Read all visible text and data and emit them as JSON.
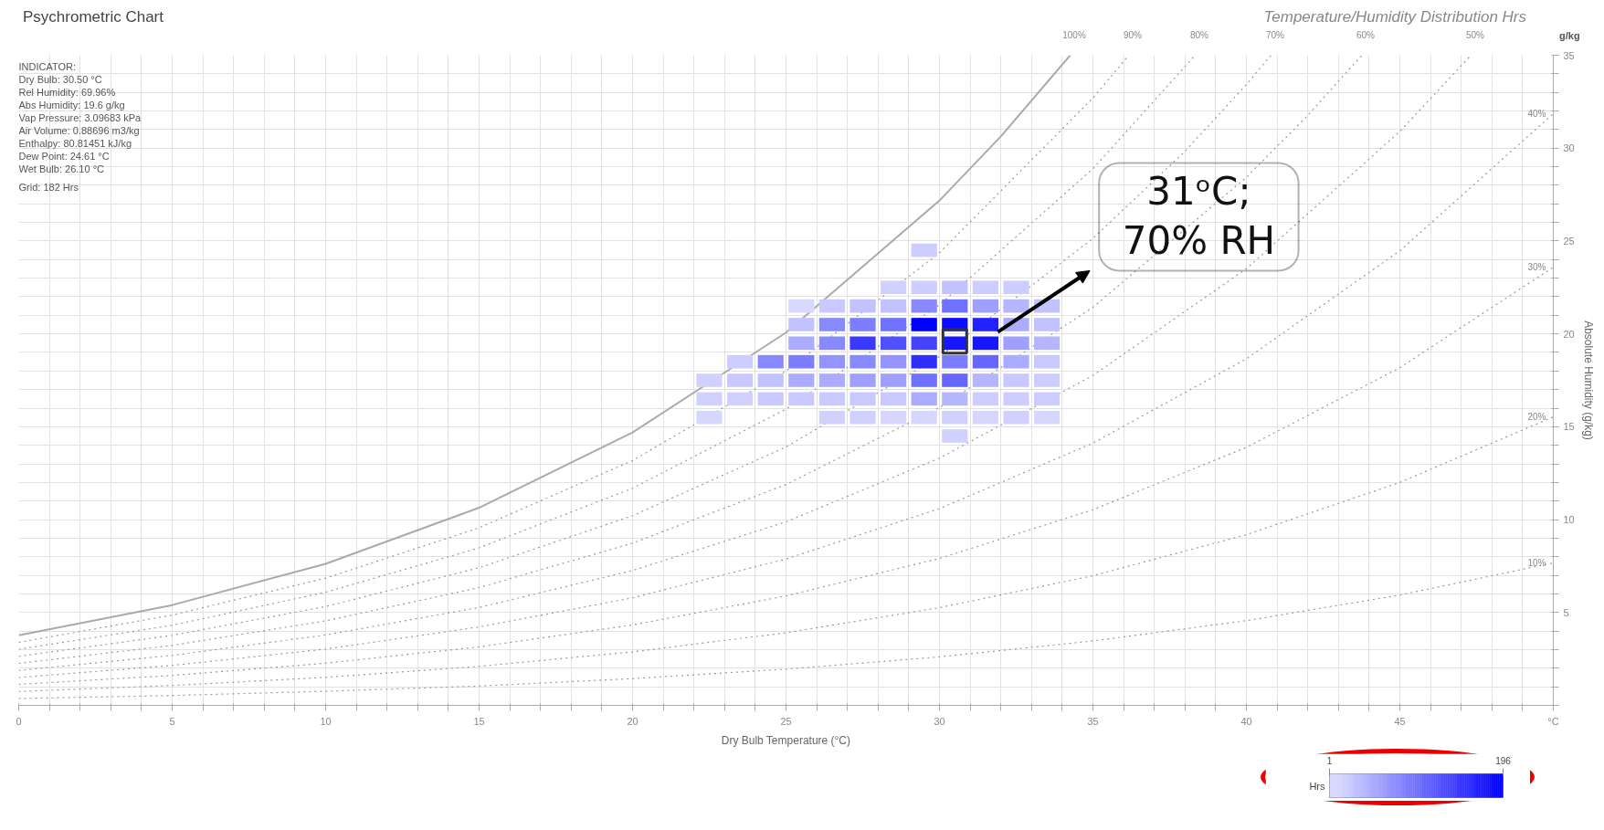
{
  "chart_data": {
    "type": "line",
    "title": "Psychrometric Chart",
    "subtitle": "Temperature/Humidity Distribution Hrs",
    "xlabel": "Dry Bulb Temperature (°C)",
    "ylabel": "Absolute Humidity (g/kg)",
    "clabel": "Hrs",
    "clim": [
      1,
      196
    ],
    "cticks": [
      1,
      196
    ],
    "annotations": [
      "INDICATOR:",
      "Dry Bulb: 30.50 °C",
      "Rel Humidity: 69.96%",
      "Abs Humidity: 19.6 g/kg",
      "Vap Pressure: 3.09683 kPa",
      "Air Volume: 0.88696 m3/kg",
      "Enthalpy: 80.81451 kJ/kg",
      "Dew Point: 24.61 °C",
      "Wet Bulb: 26.10 °C",
      "Grid: 182 Hrs",
      "g/kg",
      "°C",
      {
        "text": "31ᵒC; 70% RH",
        "x": 31.9,
        "y": 20.1
      }
    ],
    "xlim": [
      0,
      50
    ],
    "ylim": [
      0,
      35
    ],
    "grid": true,
    "xticks": [
      0,
      {
        "value": 1,
        "label": null
      },
      {
        "value": 2,
        "label": null
      },
      {
        "value": 3,
        "label": null
      },
      {
        "value": 4,
        "label": null
      },
      5,
      {
        "value": 6,
        "label": null
      },
      {
        "value": 7,
        "label": null
      },
      {
        "value": 8,
        "label": null
      },
      {
        "value": 9,
        "label": null
      },
      10,
      {
        "value": 11,
        "label": null
      },
      {
        "value": 12,
        "label": null
      },
      {
        "value": 13,
        "label": null
      },
      {
        "value": 14,
        "label": null
      },
      15,
      {
        "value": 16,
        "label": null
      },
      {
        "value": 17,
        "label": null
      },
      {
        "value": 18,
        "label": null
      },
      {
        "value": 19,
        "label": null
      },
      20,
      {
        "value": 21,
        "label": null
      },
      {
        "value": 22,
        "label": null
      },
      {
        "value": 23,
        "label": null
      },
      {
        "value": 24,
        "label": null
      },
      25,
      {
        "value": 26,
        "label": null
      },
      {
        "value": 27,
        "label": null
      },
      {
        "value": 28,
        "label": null
      },
      {
        "value": 29,
        "label": null
      },
      30,
      {
        "value": 31,
        "label": null
      },
      {
        "value": 32,
        "label": null
      },
      {
        "value": 33,
        "label": null
      },
      {
        "value": 34,
        "label": null
      },
      35,
      {
        "value": 36,
        "label": null
      },
      {
        "value": 37,
        "label": null
      },
      {
        "value": 38,
        "label": null
      },
      {
        "value": 39,
        "label": null
      },
      40,
      {
        "value": 41,
        "label": null
      },
      {
        "value": 42,
        "label": null
      },
      {
        "value": 43,
        "label": null
      },
      {
        "value": 44,
        "label": null
      },
      45,
      {
        "value": 46,
        "label": null
      },
      {
        "value": 47,
        "label": null
      },
      {
        "value": 48,
        "label": null
      },
      {
        "value": 49,
        "label": null
      },
      {
        "value": 50,
        "label": null
      }
    ],
    "yticks": [
      {
        "value": 0,
        "label": null
      },
      {
        "value": 1,
        "label": null
      },
      {
        "value": 2,
        "label": null
      },
      {
        "value": 3,
        "label": null
      },
      {
        "value": 4,
        "label": null
      },
      5,
      {
        "value": 6,
        "label": null
      },
      {
        "value": 7,
        "label": null
      },
      {
        "value": 8,
        "label": null
      },
      {
        "value": 9,
        "label": null
      },
      10,
      {
        "value": 11,
        "label": null
      },
      {
        "value": 12,
        "label": null
      },
      {
        "value": 13,
        "label": null
      },
      {
        "value": 14,
        "label": null
      },
      15,
      {
        "value": 16,
        "label": null
      },
      {
        "value": 17,
        "label": null
      },
      {
        "value": 18,
        "label": null
      },
      {
        "value": 19,
        "label": null
      },
      20,
      {
        "value": 21,
        "label": null
      },
      {
        "value": 22,
        "label": null
      },
      {
        "value": 23,
        "label": null
      },
      {
        "value": 24,
        "label": null
      },
      25,
      {
        "value": 26,
        "label": null
      },
      {
        "value": 27,
        "label": null
      },
      {
        "value": 28,
        "label": null
      },
      {
        "value": 29,
        "label": null
      },
      30,
      {
        "value": 31,
        "label": null
      },
      {
        "value": 32,
        "label": null
      },
      {
        "value": 33,
        "label": null
      },
      {
        "value": 34,
        "label": null
      },
      35
    ],
    "series": [
      {
        "name": "100%",
        "color": "#aaaaaa",
        "line_style": "solid",
        "x": [
          0,
          5,
          10,
          15,
          20,
          25,
          30,
          32,
          34.26
        ],
        "values": [
          3.77,
          5.4,
          7.62,
          10.64,
          14.69,
          20.07,
          27.18,
          30.63,
          35
        ]
      },
      {
        "name": "90%",
        "color": "#999999",
        "line_style": "dotted",
        "x": [
          0,
          5,
          10,
          15,
          20,
          25,
          30,
          35,
          36.17
        ],
        "values": [
          3.39,
          4.86,
          6.85,
          9.56,
          13.18,
          18.0,
          24.36,
          32.7,
          35
        ]
      },
      {
        "name": "80%",
        "color": "#999999",
        "line_style": "dotted",
        "x": [
          0,
          5,
          10,
          15,
          20,
          25,
          30,
          35,
          38.33
        ],
        "values": [
          3.02,
          4.31,
          6.09,
          8.48,
          11.69,
          15.95,
          21.56,
          28.89,
          35
        ]
      },
      {
        "name": "70%",
        "color": "#999999",
        "line_style": "dotted",
        "x": [
          0,
          5,
          10,
          15,
          20,
          25,
          30,
          35,
          38,
          40,
          40.8
        ],
        "values": [
          2.64,
          3.77,
          5.32,
          7.41,
          10.21,
          13.91,
          18.78,
          25.14,
          29.83,
          33.42,
          35
        ]
      },
      {
        "name": "60%",
        "color": "#999999",
        "line_style": "dotted",
        "x": [
          0,
          5,
          10,
          15,
          20,
          25,
          30,
          35,
          40,
          42,
          43.76
        ],
        "values": [
          2.26,
          3.23,
          4.55,
          6.34,
          8.73,
          11.89,
          16.03,
          21.43,
          28.43,
          31.76,
          35
        ]
      },
      {
        "name": "50%",
        "color": "#999999",
        "line_style": "dotted",
        "x": [
          0,
          5,
          10,
          15,
          20,
          25,
          30,
          35,
          40,
          45,
          47.32
        ],
        "values": [
          1.88,
          2.69,
          3.79,
          5.27,
          7.26,
          9.88,
          13.31,
          17.76,
          23.51,
          30.9,
          35
        ]
      },
      {
        "name": "40%",
        "color": "#999999",
        "line_style": "dotted",
        "x": [
          0,
          5,
          10,
          15,
          20,
          25,
          30,
          35,
          40,
          45,
          50
        ],
        "values": [
          1.5,
          2.15,
          3.03,
          4.22,
          5.79,
          7.88,
          10.59,
          14.12,
          18.66,
          24.47,
          31.85
        ]
      },
      {
        "name": "30%",
        "color": "#999999",
        "line_style": "dotted",
        "x": [
          0,
          5,
          10,
          15,
          20,
          25,
          30,
          35,
          40,
          45,
          50
        ],
        "values": [
          1.13,
          1.61,
          2.27,
          3.15,
          4.33,
          5.89,
          7.91,
          10.53,
          13.89,
          18.18,
          23.59
        ]
      },
      {
        "name": "20%",
        "color": "#999999",
        "line_style": "dotted",
        "x": [
          0,
          5,
          10,
          15,
          20,
          25,
          30,
          35,
          40,
          45,
          50
        ],
        "values": [
          0.75,
          1.07,
          1.51,
          2.1,
          2.88,
          3.91,
          5.26,
          6.98,
          9.19,
          12.0,
          15.53
        ]
      },
      {
        "name": "10%",
        "color": "#999999",
        "line_style": "dotted",
        "x": [
          0,
          5,
          10,
          15,
          20,
          25,
          30,
          35,
          40,
          45,
          50
        ],
        "values": [
          0.37,
          0.53,
          0.76,
          1.04,
          1.44,
          1.95,
          2.61,
          3.47,
          4.56,
          5.94,
          7.67
        ]
      },
      {
        "type": "scatter",
        "marker": "square",
        "x": [
          29.5,
          28.5,
          29.5,
          30.5,
          31.5,
          32.5,
          25.5,
          26.5,
          27.5,
          28.5,
          29.5,
          30.5,
          31.5,
          32.5,
          33.5,
          25.5,
          26.5,
          27.5,
          28.5,
          29.5,
          30.5,
          31.5,
          32.5,
          33.5,
          25.5,
          26.5,
          27.5,
          28.5,
          29.5,
          30.5,
          31.5,
          32.5,
          33.5,
          23.5,
          24.5,
          25.5,
          26.5,
          27.5,
          28.5,
          29.5,
          30.5,
          31.5,
          32.5,
          33.5,
          22.5,
          23.5,
          24.5,
          25.5,
          26.5,
          27.5,
          28.5,
          29.5,
          30.5,
          31.5,
          32.5,
          33.5,
          22.5,
          23.5,
          24.5,
          25.5,
          26.5,
          27.5,
          28.5,
          29.5,
          30.5,
          31.5,
          32.5,
          33.5,
          22.5,
          26.5,
          27.5,
          28.5,
          29.5,
          30.5,
          31.5,
          32.5,
          33.5,
          30.5
        ],
        "values": [
          24.5,
          22.5,
          22.5,
          22.5,
          22.5,
          22.5,
          21.5,
          21.5,
          21.5,
          21.5,
          21.5,
          21.5,
          21.5,
          21.5,
          21.5,
          20.5,
          20.5,
          20.5,
          20.5,
          20.5,
          20.5,
          20.5,
          20.5,
          20.5,
          19.5,
          19.5,
          19.5,
          19.5,
          19.5,
          19.5,
          19.5,
          19.5,
          19.5,
          18.5,
          18.5,
          18.5,
          18.5,
          18.5,
          18.5,
          18.5,
          18.5,
          18.5,
          18.5,
          18.5,
          17.5,
          17.5,
          17.5,
          17.5,
          17.5,
          17.5,
          17.5,
          17.5,
          17.5,
          17.5,
          17.5,
          17.5,
          16.5,
          16.5,
          16.5,
          16.5,
          16.5,
          16.5,
          16.5,
          16.5,
          16.5,
          16.5,
          16.5,
          16.5,
          15.5,
          15.5,
          15.5,
          15.5,
          15.5,
          15.5,
          15.5,
          15.5,
          15.5,
          14.5
        ],
        "cvalues": [
          21,
          17,
          21,
          30,
          21,
          21,
          11,
          24,
          30,
          30,
          79,
          99,
          60,
          40,
          30,
          30,
          79,
          89,
          99,
          196,
          186,
          167,
          50,
          30,
          50,
          79,
          147,
          128,
          138,
          177,
          177,
          60,
          40,
          21,
          79,
          89,
          69,
          79,
          69,
          157,
          89,
          108,
          50,
          24,
          17,
          24,
          30,
          50,
          50,
          60,
          60,
          99,
          108,
          40,
          24,
          21,
          17,
          17,
          24,
          24,
          24,
          24,
          24,
          50,
          40,
          21,
          21,
          21,
          13,
          17,
          17,
          13,
          13,
          17,
          13,
          17,
          13,
          17
        ],
        "colors": [
          "#cdcdff",
          "#d1d1ff",
          "#cdcdff",
          "#c2c2ff",
          "#cdcdff",
          "#cdcdff",
          "#d8d8ff",
          "#c9c9ff",
          "#c2c2ff",
          "#c2c2ff",
          "#8989ff",
          "#7171ff",
          "#9f9fff",
          "#b6b6ff",
          "#c2c2ff",
          "#c2c2ff",
          "#8989ff",
          "#7d7dff",
          "#7171ff",
          "#0000ff",
          "#0c0cff",
          "#2222ff",
          "#ababff",
          "#c2c2ff",
          "#ababff",
          "#8989ff",
          "#3939ff",
          "#5050ff",
          "#4444ff",
          "#1616ff",
          "#1616ff",
          "#9f9fff",
          "#b6b6ff",
          "#cdcdff",
          "#8989ff",
          "#7d7dff",
          "#9494ff",
          "#8989ff",
          "#9494ff",
          "#2e2eff",
          "#7d7dff",
          "#6767ff",
          "#ababff",
          "#c9c9ff",
          "#d1d1ff",
          "#c9c9ff",
          "#c2c2ff",
          "#ababff",
          "#ababff",
          "#9f9fff",
          "#9f9fff",
          "#7171ff",
          "#6767ff",
          "#b6b6ff",
          "#c9c9ff",
          "#cdcdff",
          "#d1d1ff",
          "#d1d1ff",
          "#c9c9ff",
          "#c9c9ff",
          "#c9c9ff",
          "#c9c9ff",
          "#c9c9ff",
          "#ababff",
          "#b6b6ff",
          "#cdcdff",
          "#cdcdff",
          "#cdcdff",
          "#d6d6ff",
          "#d1d1ff",
          "#d1d1ff",
          "#d6d6ff",
          "#d6d6ff",
          "#d1d1ff",
          "#d6d6ff",
          "#d1d1ff",
          "#d6d6ff",
          "#d1d1ff"
        ]
      },
      {
        "type": "scatter",
        "marker": "square",
        "color": "#333333",
        "x": [
          30.5
        ],
        "values": [
          19.6
        ]
      }
    ]
  }
}
